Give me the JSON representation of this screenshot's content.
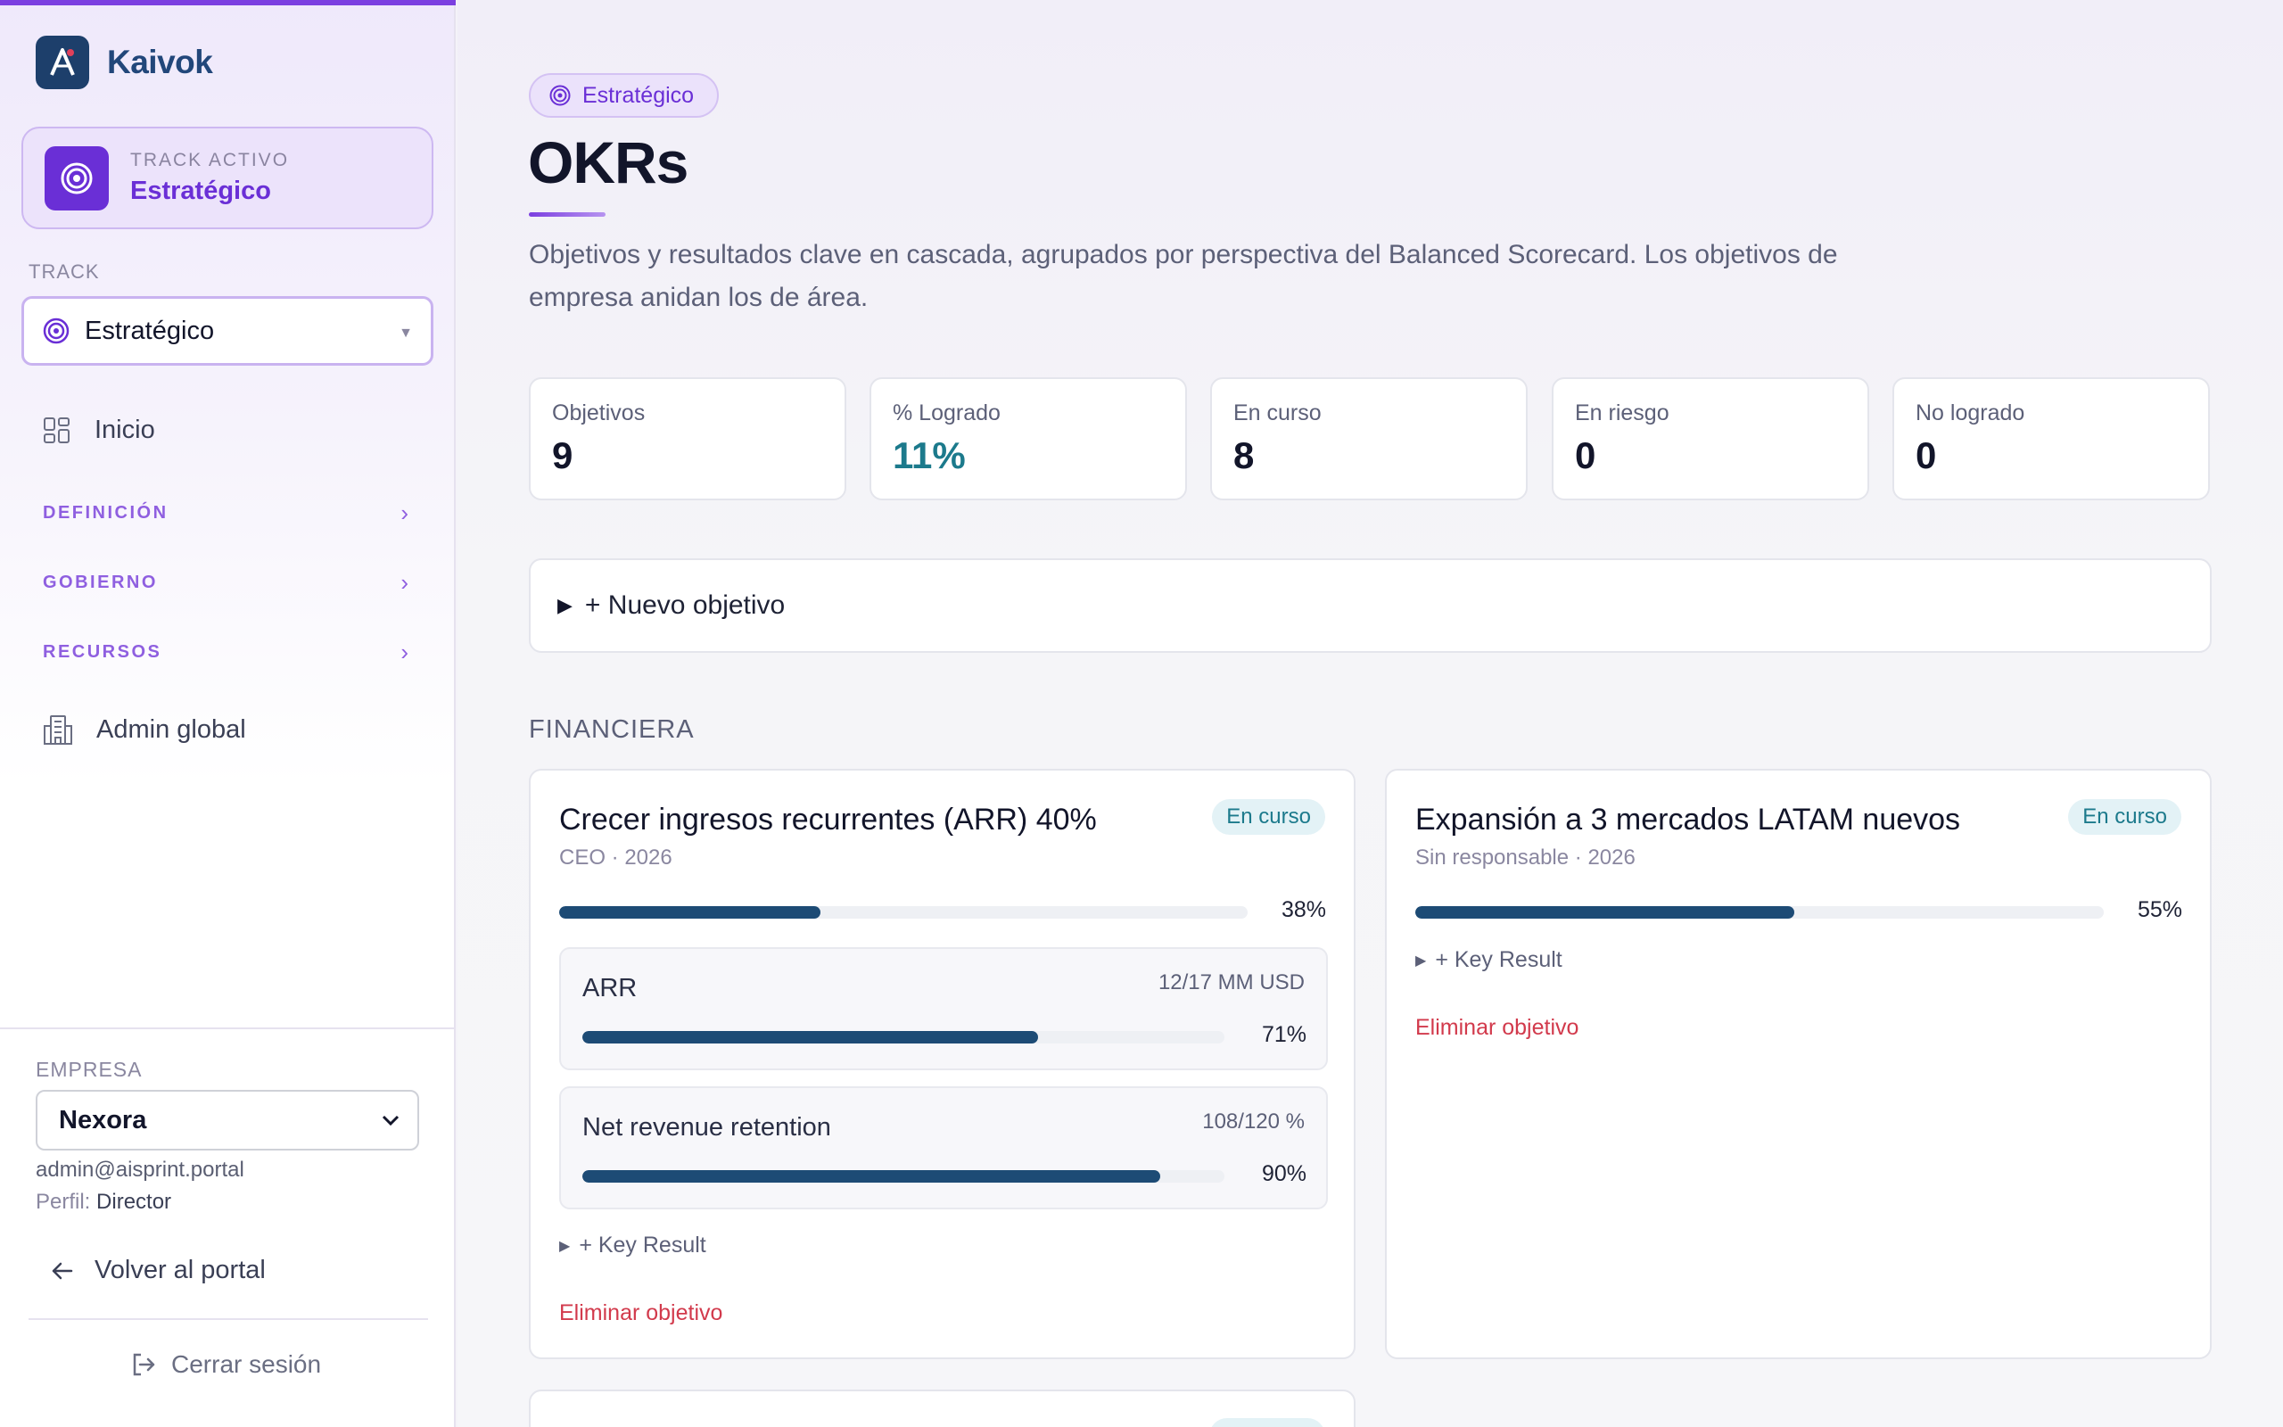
{
  "sidebar": {
    "brand": "Kaivok",
    "active_track": {
      "label": "TRACK ACTIVO",
      "value": "Estratégico"
    },
    "track_select": {
      "label": "TRACK",
      "value": "Estratégico"
    },
    "nav": {
      "inicio": "Inicio",
      "definicion": "DEFINICIÓN",
      "gobierno": "GOBIERNO",
      "recursos": "RECURSOS",
      "admin": "Admin global"
    },
    "company": {
      "label": "EMPRESA",
      "value": "Nexora",
      "email": "admin@aisprint.portal",
      "profile_label": "Perfil:",
      "profile_value": "Director"
    },
    "back": "Volver al portal",
    "logout": "Cerrar sesión"
  },
  "header": {
    "badge": "Estratégico",
    "title": "OKRs",
    "description": "Objetivos y resultados clave en cascada, agrupados por perspectiva del Balanced Scorecard. Los objetivos de empresa anidan los de área."
  },
  "kpis": [
    {
      "label": "Objetivos",
      "value": "9"
    },
    {
      "label": "% Logrado",
      "value": "11%"
    },
    {
      "label": "En curso",
      "value": "8"
    },
    {
      "label": "En riesgo",
      "value": "0"
    },
    {
      "label": "No logrado",
      "value": "0"
    }
  ],
  "new_objective": "+ Nuevo objetivo",
  "section": "FINANCIERA",
  "objectives": [
    {
      "title": "Crecer ingresos recurrentes (ARR) 40%",
      "status": "En curso",
      "subtitle": "CEO · 2026",
      "progress": 0.38,
      "progress_label": "38%",
      "key_results": [
        {
          "name": "ARR",
          "meta": "12/17 MM USD",
          "progress": 0.71,
          "progress_label": "71%"
        },
        {
          "name": "Net revenue retention",
          "meta": "108/120 %",
          "progress": 0.9,
          "progress_label": "90%"
        }
      ],
      "add_kr": "+ Key Result",
      "delete": "Eliminar objetivo"
    },
    {
      "title": "Expansión a 3 mercados LATAM nuevos",
      "status": "En curso",
      "subtitle": "Sin responsable · 2026",
      "progress": 0.55,
      "progress_label": "55%",
      "key_results": [],
      "add_kr": "+ Key Result",
      "delete": "Eliminar objetivo"
    }
  ],
  "colors": {
    "accent": "#6a2fd6",
    "bar": "#1d4b75",
    "status": "#1c7a8c",
    "danger": "#d23a4c"
  }
}
